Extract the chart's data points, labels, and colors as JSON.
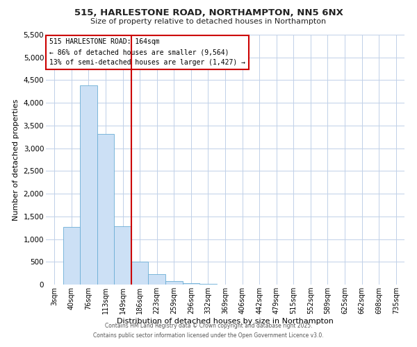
{
  "title": "515, HARLESTONE ROAD, NORTHAMPTON, NN5 6NX",
  "subtitle": "Size of property relative to detached houses in Northampton",
  "xlabel": "Distribution of detached houses by size in Northampton",
  "ylabel": "Number of detached properties",
  "bar_labels": [
    "3sqm",
    "40sqm",
    "76sqm",
    "113sqm",
    "149sqm",
    "186sqm",
    "223sqm",
    "259sqm",
    "296sqm",
    "332sqm",
    "369sqm",
    "406sqm",
    "442sqm",
    "479sqm",
    "515sqm",
    "552sqm",
    "589sqm",
    "625sqm",
    "662sqm",
    "698sqm",
    "735sqm"
  ],
  "bar_values": [
    0,
    1270,
    4380,
    3320,
    1280,
    500,
    230,
    80,
    30,
    10,
    5,
    2,
    1,
    0,
    0,
    0,
    0,
    0,
    0,
    0,
    0
  ],
  "bar_color": "#cce0f5",
  "bar_edgecolor": "#6baed6",
  "vline_color": "#cc0000",
  "ylim": [
    0,
    5500
  ],
  "yticks": [
    0,
    500,
    1000,
    1500,
    2000,
    2500,
    3000,
    3500,
    4000,
    4500,
    5000,
    5500
  ],
  "annotation_title": "515 HARLESTONE ROAD: 164sqm",
  "annotation_line1": "← 86% of detached houses are smaller (9,564)",
  "annotation_line2": "13% of semi-detached houses are larger (1,427) →",
  "annotation_box_color": "#cc0000",
  "footer1": "Contains HM Land Registry data © Crown copyright and database right 2025.",
  "footer2": "Contains public sector information licensed under the Open Government Licence v3.0.",
  "bg_color": "#ffffff",
  "grid_color": "#c0d0e8"
}
